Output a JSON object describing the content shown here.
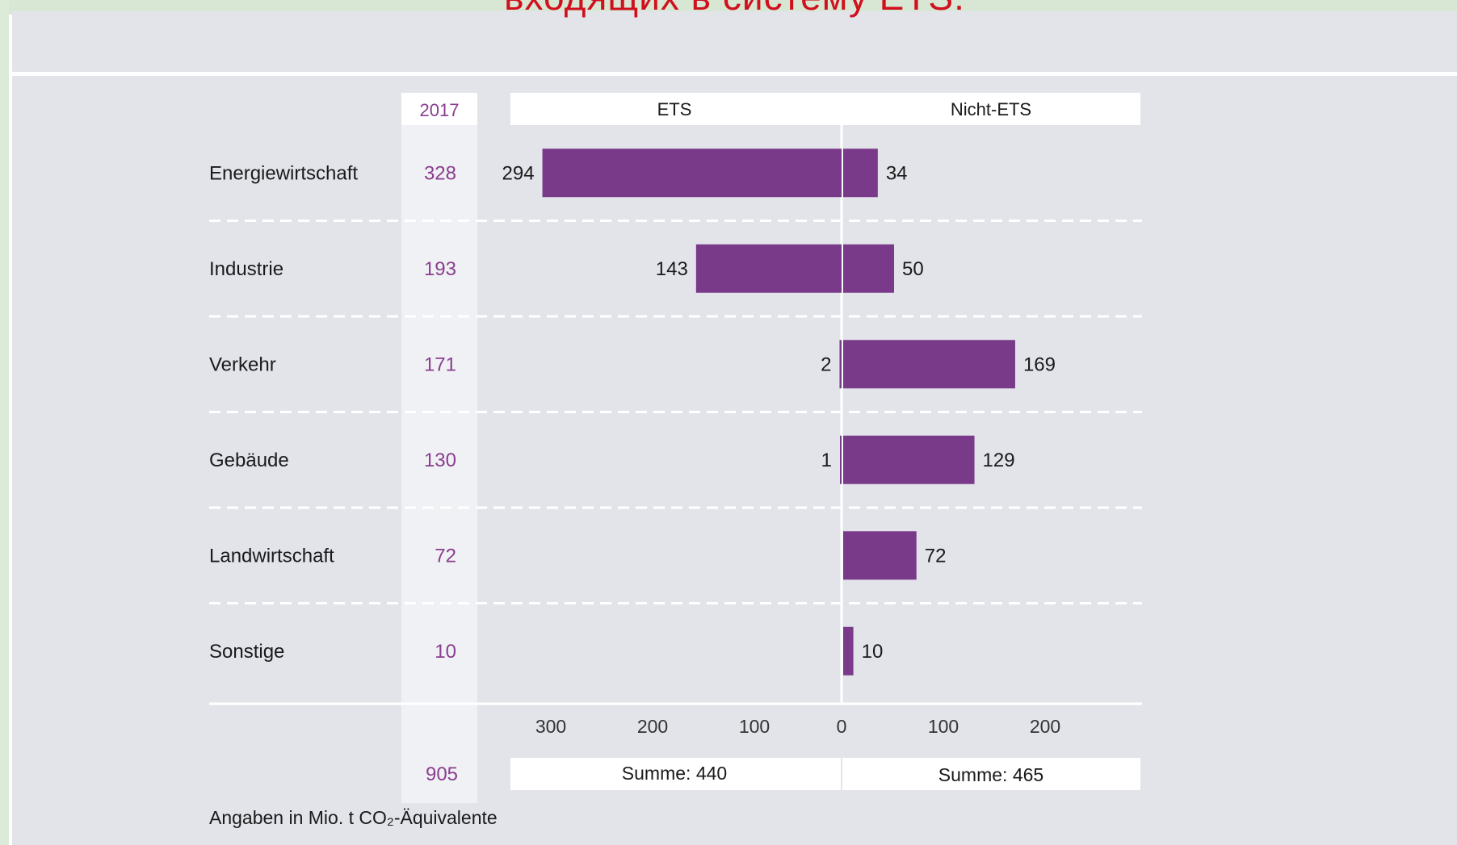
{
  "slide": {
    "title": "входящих в систему ETS:"
  },
  "colors": {
    "bar": "#7a3a8a",
    "year_text": "#8a3d8f",
    "page_background": "#e2e4ea",
    "title_red": "#d1101e"
  },
  "chart_data": {
    "type": "bar",
    "orientation": "horizontal-diverging",
    "year_header": "2017",
    "left_header": "ETS",
    "right_header": "Nicht-ETS",
    "categories": [
      "Energiewirtschaft",
      "Industrie",
      "Verkehr",
      "Gebäude",
      "Landwirtschaft",
      "Sonstige"
    ],
    "totals": [
      328,
      193,
      171,
      130,
      72,
      10
    ],
    "series": [
      {
        "name": "ETS",
        "values": [
          294,
          143,
          2,
          1,
          0,
          0
        ]
      },
      {
        "name": "Nicht-ETS",
        "values": [
          34,
          50,
          169,
          129,
          72,
          10
        ]
      }
    ],
    "value_labels_ets": [
      "294",
      "143",
      "2",
      "1",
      "",
      ""
    ],
    "value_labels_nicht_ets": [
      "34",
      "50",
      "169",
      "129",
      "72",
      "10"
    ],
    "x_ticks_left": [
      "300",
      "200",
      "100"
    ],
    "x_tick_zero": "0",
    "x_ticks_right": [
      "100",
      "200"
    ],
    "xlim_left": [
      0,
      300
    ],
    "xlim_right": [
      0,
      200
    ],
    "grand_total": "905",
    "sum_ets": "Summe: 440",
    "sum_nicht_ets": "Summe: 465",
    "note": "Angaben in Mio. t CO₂-Äquivalente",
    "gridlines": "dashed between rows"
  }
}
